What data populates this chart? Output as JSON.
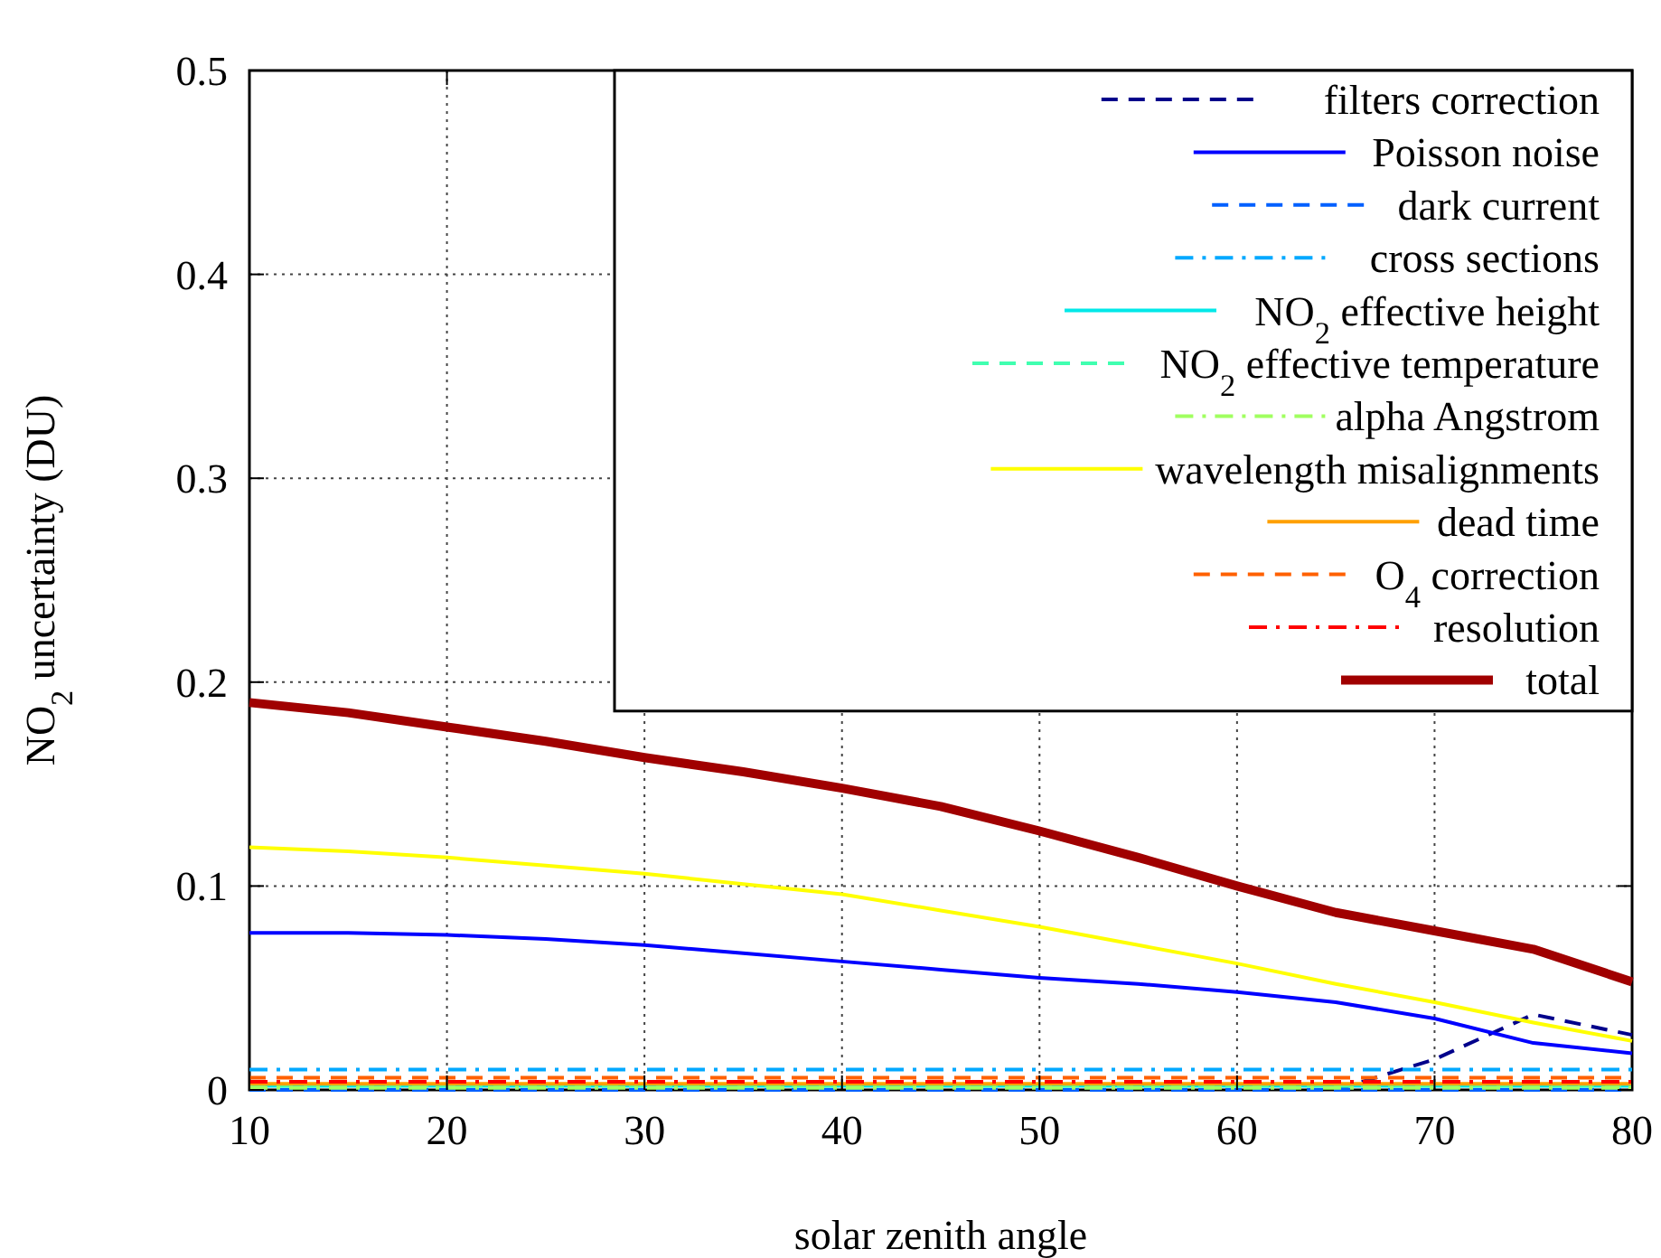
{
  "chart_data": {
    "type": "line",
    "xlabel": "solar zenith angle",
    "ylabel": "NO$_{2}$ uncertainty (DU)",
    "x": [
      10,
      15,
      20,
      25,
      30,
      35,
      40,
      45,
      50,
      55,
      60,
      65,
      70,
      75,
      80
    ],
    "xlim": [
      10,
      80
    ],
    "xticks": [
      10,
      20,
      30,
      40,
      50,
      60,
      70,
      80
    ],
    "ylim": [
      0,
      0.5
    ],
    "yticks": [
      0,
      0.1,
      0.2,
      0.3,
      0.4,
      0.5
    ],
    "grid": true,
    "legend": "top right",
    "series": [
      {
        "name": "filters correction",
        "color": "#00008b",
        "line_style": "dashed",
        "values": [
          null,
          null,
          null,
          null,
          null,
          null,
          null,
          null,
          null,
          null,
          null,
          0,
          0.015,
          0.037,
          0.027
        ]
      },
      {
        "name": "Poisson noise",
        "color": "#0000ff",
        "line_style": "solid",
        "values": [
          0.077,
          0.077,
          0.076,
          0.074,
          0.071,
          0.067,
          0.063,
          0.059,
          0.055,
          0.052,
          0.048,
          0.043,
          0.035,
          0.023,
          0.018
        ]
      },
      {
        "name": "dark current",
        "color": "#0060ff",
        "line_style": "dashed",
        "values": [
          0,
          0,
          0,
          0,
          0,
          0,
          0,
          0,
          0,
          0,
          0,
          0,
          0,
          0,
          0
        ]
      },
      {
        "name": "cross sections",
        "color": "#00a8ff",
        "line_style": "dashdot",
        "values": [
          0.01,
          0.01,
          0.01,
          0.01,
          0.01,
          0.01,
          0.01,
          0.01,
          0.01,
          0.01,
          0.01,
          0.01,
          0.01,
          0.01,
          0.01
        ]
      },
      {
        "name": "NO$_{2}$ effective height",
        "color": "#00e8e8",
        "line_style": "solid",
        "values": [
          0.002,
          0.002,
          0.002,
          0.002,
          0.002,
          0.002,
          0.002,
          0.002,
          0.002,
          0.002,
          0.002,
          0.002,
          0.002,
          0.002,
          0.002
        ]
      },
      {
        "name": "NO$_{2}$ effective temperature",
        "color": "#40ffb0",
        "line_style": "dashed",
        "values": [
          0.002,
          0.002,
          0.002,
          0.002,
          0.002,
          0.002,
          0.002,
          0.002,
          0.002,
          0.002,
          0.002,
          0.002,
          0.002,
          0.002,
          0.002
        ]
      },
      {
        "name": "alpha Angstrom",
        "color": "#a0ff60",
        "line_style": "dashdot",
        "values": [
          0.001,
          0.001,
          0.001,
          0.001,
          0.001,
          0.001,
          0.001,
          0.001,
          0.001,
          0.001,
          0.001,
          0.001,
          0.001,
          0.001,
          0.001
        ]
      },
      {
        "name": "wavelength misalignments",
        "color": "#ffff00",
        "line_style": "solid",
        "values": [
          0.119,
          0.117,
          0.114,
          0.11,
          0.106,
          0.101,
          0.096,
          0.088,
          0.08,
          0.071,
          0.062,
          0.052,
          0.043,
          0.033,
          0.024
        ]
      },
      {
        "name": "dead time",
        "color": "#ffa000",
        "line_style": "solid",
        "values": [
          0.003,
          0.003,
          0.003,
          0.003,
          0.003,
          0.003,
          0.003,
          0.003,
          0.003,
          0.003,
          0.003,
          0.003,
          0.003,
          0.003,
          0.003
        ]
      },
      {
        "name": "O$_{4}$ correction",
        "color": "#ff6000",
        "line_style": "dashed",
        "values": [
          0.006,
          0.006,
          0.006,
          0.006,
          0.006,
          0.006,
          0.006,
          0.006,
          0.006,
          0.006,
          0.006,
          0.006,
          0.006,
          0.006,
          0.006
        ]
      },
      {
        "name": "resolution",
        "color": "#ff0000",
        "line_style": "dashdot",
        "values": [
          0.004,
          0.004,
          0.004,
          0.004,
          0.004,
          0.004,
          0.004,
          0.004,
          0.004,
          0.004,
          0.004,
          0.004,
          0.004,
          0.004,
          0.004
        ]
      },
      {
        "name": "total",
        "color": "#a00000",
        "line_style": "solid",
        "values": [
          0.19,
          0.185,
          0.178,
          0.171,
          0.163,
          0.156,
          0.148,
          0.139,
          0.127,
          0.114,
          0.1,
          0.087,
          0.078,
          0.069,
          0.053
        ]
      }
    ]
  }
}
